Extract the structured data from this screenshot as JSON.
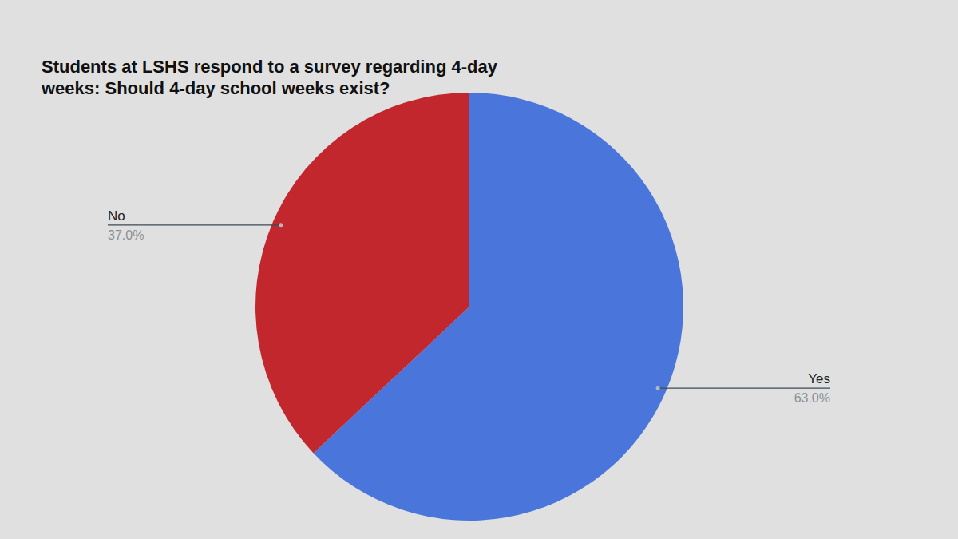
{
  "chart_data": {
    "type": "pie",
    "title": "Students at LSHS respond to a survey regarding 4-day weeks: Should 4-day school weeks exist?",
    "categories": [
      "Yes",
      "No"
    ],
    "values": [
      63.0,
      37.0
    ],
    "value_labels": [
      "63.0%",
      "37.0%"
    ],
    "colors": [
      "#4a76dc",
      "#c1272d"
    ]
  }
}
